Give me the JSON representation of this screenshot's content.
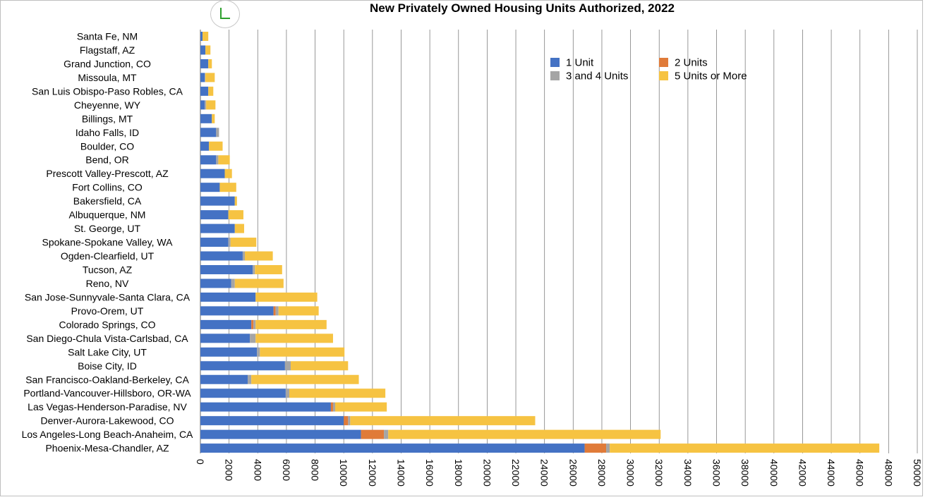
{
  "colors": {
    "1 Unit": "#4472c4",
    "2 Units": "#e07b39",
    "3 and 4 Units": "#a5a5a5",
    "5 Units or More": "#f6c342",
    "grid": "#7f7f7f",
    "frame": "#bfbfbf"
  },
  "chart_data": {
    "type": "bar",
    "orientation": "horizontal",
    "stacked": true,
    "title": "New Privately Owned Housing Units Authorized, 2022",
    "xlabel": "",
    "ylabel": "",
    "xlim": [
      0,
      50000
    ],
    "x_ticks": [
      0,
      2000,
      4000,
      6000,
      8000,
      10000,
      12000,
      14000,
      16000,
      18000,
      20000,
      22000,
      24000,
      26000,
      28000,
      30000,
      32000,
      34000,
      36000,
      38000,
      40000,
      42000,
      44000,
      46000,
      48000,
      50000
    ],
    "x_tick_rotation": 90,
    "grid": true,
    "legend_position": "top-right",
    "categories": [
      "Santa Fe, NM",
      "Flagstaff, AZ",
      "Grand Junction, CO",
      "Missoula, MT",
      "San Luis Obispo-Paso Robles, CA",
      "Cheyenne, WY",
      "Billings, MT",
      "Idaho Falls, ID",
      "Boulder, CO",
      "Bend, OR",
      "Prescott Valley-Prescott, AZ",
      "Fort Collins, CO",
      "Bakersfield, CA",
      "Albuquerque, NM",
      "St. George, UT",
      "Spokane-Spokane Valley, WA",
      "Ogden-Clearfield, UT",
      "Tucson, AZ",
      "Reno, NV",
      "San Jose-Sunnyvale-Santa Clara, CA",
      "Provo-Orem, UT",
      "Colorado Springs, CO",
      "San Diego-Chula Vista-Carlsbad, CA",
      "Salt Lake City, UT",
      "Boise City, ID",
      "San Francisco-Oakland-Berkeley, CA",
      "Portland-Vancouver-Hillsboro, OR-WA",
      "Las Vegas-Henderson-Paradise, NV",
      "Denver-Aurora-Lakewood, CO",
      "Los Angeles-Long Beach-Anaheim, CA",
      "Phoenix-Mesa-Chandler, AZ"
    ],
    "series": [
      {
        "name": "1 Unit",
        "values": [
          150,
          350,
          550,
          300,
          550,
          300,
          800,
          1100,
          600,
          1100,
          1700,
          1350,
          2400,
          1950,
          2400,
          1950,
          2950,
          3650,
          2150,
          3850,
          5100,
          3550,
          3450,
          3950,
          5900,
          3300,
          5950,
          9100,
          10000,
          11200,
          26800
        ]
      },
      {
        "name": "2 Units",
        "values": [
          0,
          0,
          0,
          0,
          0,
          0,
          0,
          0,
          0,
          0,
          0,
          0,
          0,
          0,
          0,
          0,
          0,
          0,
          0,
          0,
          150,
          150,
          0,
          0,
          0,
          0,
          0,
          150,
          300,
          1600,
          1500
        ]
      },
      {
        "name": "3 and 4 Units",
        "values": [
          0,
          0,
          0,
          50,
          0,
          100,
          0,
          200,
          0,
          150,
          0,
          0,
          0,
          0,
          0,
          150,
          150,
          150,
          250,
          0,
          200,
          150,
          400,
          200,
          400,
          250,
          250,
          150,
          150,
          300,
          250
        ]
      },
      {
        "name": "5 Units or More",
        "values": [
          400,
          350,
          250,
          650,
          350,
          650,
          200,
          0,
          950,
          800,
          500,
          1150,
          150,
          1050,
          650,
          1800,
          1950,
          1900,
          3400,
          4300,
          2800,
          4950,
          5400,
          5900,
          4000,
          7500,
          6700,
          3600,
          12900,
          19000,
          18800
        ]
      }
    ]
  }
}
